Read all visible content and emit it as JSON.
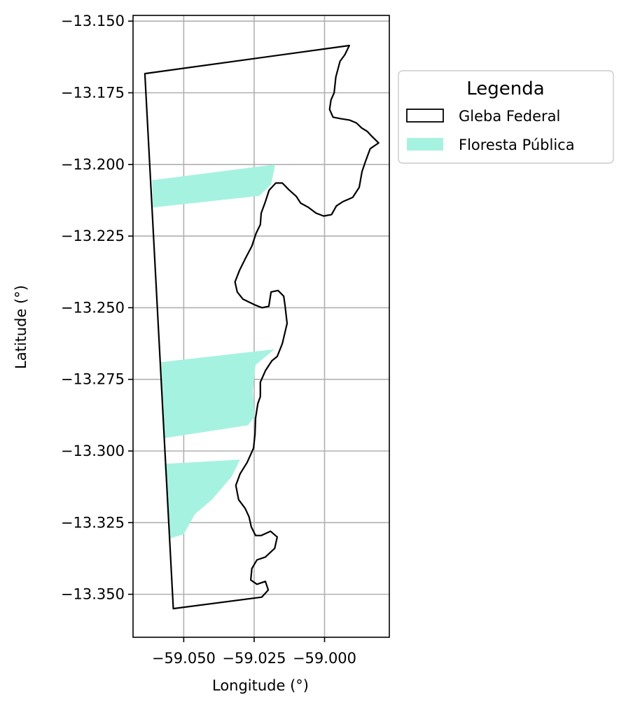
{
  "chart_data": {
    "type": "map",
    "xlabel": "Longitude (°)",
    "ylabel": "Latitude (°)",
    "xlim": [
      -59.068,
      -58.977
    ],
    "ylim": [
      -13.365,
      -13.148
    ],
    "x_ticks": [
      -59.05,
      -59.025,
      -59.0
    ],
    "x_tick_labels": [
      "−59.050",
      "−59.025",
      "−59.000"
    ],
    "y_ticks": [
      -13.15,
      -13.175,
      -13.2,
      -13.225,
      -13.25,
      -13.275,
      -13.3,
      -13.325,
      -13.35
    ],
    "y_tick_labels": [
      "−13.150",
      "−13.175",
      "−13.200",
      "−13.225",
      "−13.250",
      "−13.275",
      "−13.300",
      "−13.325",
      "−13.350"
    ],
    "grid": true,
    "legend": {
      "title": "Legenda",
      "placement": "outside-right-top",
      "entries": [
        {
          "label": "Gleba Federal",
          "style": "outline",
          "edge_color": "#000000",
          "fill_color": "#ffffff"
        },
        {
          "label": "Floresta Pública",
          "style": "fill",
          "fill_color": "#a6f2e0"
        }
      ]
    },
    "layers": [
      {
        "name": "Gleba Federal",
        "kind": "polygon-outline",
        "stroke": "#000000",
        "coordinates": [
          [
            -59.0638,
            -13.1683
          ],
          [
            -58.9912,
            -13.1585
          ],
          [
            -58.9928,
            -13.1617
          ],
          [
            -58.9945,
            -13.164
          ],
          [
            -58.996,
            -13.1695
          ],
          [
            -58.9966,
            -13.175
          ],
          [
            -58.9977,
            -13.1775
          ],
          [
            -58.9982,
            -13.1808
          ],
          [
            -58.997,
            -13.1835
          ],
          [
            -58.9945,
            -13.184
          ],
          [
            -58.9912,
            -13.1845
          ],
          [
            -58.9887,
            -13.1855
          ],
          [
            -58.9868,
            -13.1873
          ],
          [
            -58.9848,
            -13.1885
          ],
          [
            -58.9832,
            -13.1902
          ],
          [
            -58.9808,
            -13.1925
          ],
          [
            -58.9838,
            -13.1945
          ],
          [
            -58.9853,
            -13.1985
          ],
          [
            -58.9867,
            -13.2025
          ],
          [
            -58.9877,
            -13.208
          ],
          [
            -58.99,
            -13.2115
          ],
          [
            -58.9935,
            -13.213
          ],
          [
            -58.9958,
            -13.2145
          ],
          [
            -58.9975,
            -13.2175
          ],
          [
            -59.0003,
            -13.218
          ],
          [
            -59.003,
            -13.217
          ],
          [
            -59.0057,
            -13.215
          ],
          [
            -59.0085,
            -13.2135
          ],
          [
            -59.01,
            -13.2112
          ],
          [
            -59.0127,
            -13.2088
          ],
          [
            -59.015,
            -13.2065
          ],
          [
            -59.0173,
            -13.2065
          ],
          [
            -59.0197,
            -13.209
          ],
          [
            -59.021,
            -13.213
          ],
          [
            -59.0225,
            -13.217
          ],
          [
            -59.0228,
            -13.221
          ],
          [
            -59.0243,
            -13.224
          ],
          [
            -59.0258,
            -13.2285
          ],
          [
            -59.0282,
            -13.233
          ],
          [
            -59.0302,
            -13.237
          ],
          [
            -59.0318,
            -13.241
          ],
          [
            -59.031,
            -13.2445
          ],
          [
            -59.029,
            -13.247
          ],
          [
            -59.0248,
            -13.249
          ],
          [
            -59.0222,
            -13.25
          ],
          [
            -59.0198,
            -13.2495
          ],
          [
            -59.019,
            -13.2445
          ],
          [
            -59.0165,
            -13.244
          ],
          [
            -59.0145,
            -13.246
          ],
          [
            -59.014,
            -13.2495
          ],
          [
            -59.0133,
            -13.2555
          ],
          [
            -59.015,
            -13.2625
          ],
          [
            -59.0168,
            -13.267
          ],
          [
            -59.0187,
            -13.2685
          ],
          [
            -59.021,
            -13.272
          ],
          [
            -59.0228,
            -13.276
          ],
          [
            -59.0228,
            -13.281
          ],
          [
            -59.0237,
            -13.2835
          ],
          [
            -59.0245,
            -13.2885
          ],
          [
            -59.0247,
            -13.294
          ],
          [
            -59.0252,
            -13.299
          ],
          [
            -59.0275,
            -13.304
          ],
          [
            -59.03,
            -13.308
          ],
          [
            -59.0315,
            -13.312
          ],
          [
            -59.0305,
            -13.317
          ],
          [
            -59.0282,
            -13.32
          ],
          [
            -59.0268,
            -13.323
          ],
          [
            -59.026,
            -13.3265
          ],
          [
            -59.0245,
            -13.3295
          ],
          [
            -59.0225,
            -13.3295
          ],
          [
            -59.0192,
            -13.328
          ],
          [
            -59.0168,
            -13.33
          ],
          [
            -59.0177,
            -13.334
          ],
          [
            -59.021,
            -13.337
          ],
          [
            -59.024,
            -13.338
          ],
          [
            -59.0258,
            -13.341
          ],
          [
            -59.0262,
            -13.345
          ],
          [
            -59.024,
            -13.3465
          ],
          [
            -59.021,
            -13.3455
          ],
          [
            -59.02,
            -13.3485
          ],
          [
            -59.0223,
            -13.351
          ],
          [
            -59.0537,
            -13.355
          ],
          [
            -59.0638,
            -13.1683
          ]
        ]
      },
      {
        "name": "Floresta Pública",
        "kind": "polygon-fill",
        "fill": "#a6f2e0",
        "polygons": [
          [
            [
              -59.0612,
              -13.2055
            ],
            [
              -59.0175,
              -13.2
            ],
            [
              -59.019,
              -13.207
            ],
            [
              -59.0232,
              -13.211
            ],
            [
              -59.061,
              -13.215
            ]
          ],
          [
            [
              -59.0582,
              -13.269
            ],
            [
              -59.0178,
              -13.2645
            ],
            [
              -59.0245,
              -13.27
            ],
            [
              -59.0255,
              -13.279
            ],
            [
              -59.0248,
              -13.288
            ],
            [
              -59.0272,
              -13.291
            ],
            [
              -59.0568,
              -13.2955
            ]
          ],
          [
            [
              -59.0568,
              -13.3045
            ],
            [
              -59.03,
              -13.303
            ],
            [
              -59.033,
              -13.309
            ],
            [
              -59.04,
              -13.317
            ],
            [
              -59.046,
              -13.322
            ],
            [
              -59.05,
              -13.329
            ],
            [
              -59.0548,
              -13.3305
            ]
          ]
        ]
      }
    ]
  }
}
